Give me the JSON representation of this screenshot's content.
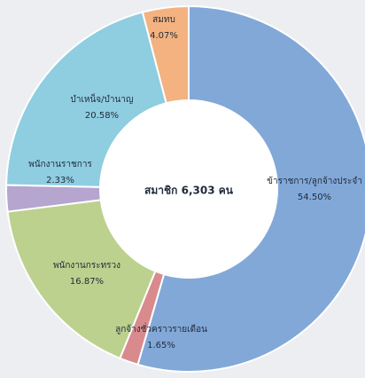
{
  "chart_data": {
    "type": "donut",
    "center_label": "สมาชิก 6,303 คน",
    "categories": [
      "ข้าราชการ/ลูกจ้างประจำ",
      "ลูกจ้างชั่วคราวรายเดือน",
      "พนักงานกระทรวง",
      "พนักงานราชการ",
      "บำเหน็จ/บำนาญ",
      "สมทบ"
    ],
    "values": [
      54.5,
      1.65,
      16.87,
      2.33,
      20.58,
      4.07
    ],
    "value_labels": [
      "54.50%",
      "1.65%",
      "16.87%",
      "2.33%",
      "20.58%",
      "4.07%"
    ],
    "colors": [
      "#82a8d8",
      "#d98a8c",
      "#bcd18e",
      "#b5a5cf",
      "#8fcde0",
      "#f3b27f"
    ]
  }
}
